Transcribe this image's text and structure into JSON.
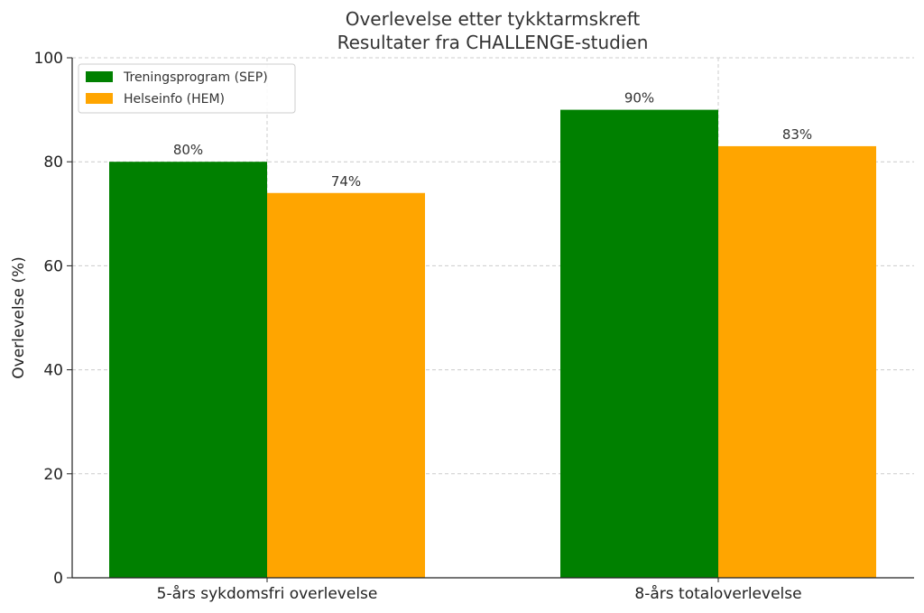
{
  "chart_data": {
    "type": "bar",
    "title": "Overlevelse etter tykktarmskreft",
    "subtitle": "Resultater fra CHALLENGE-studien",
    "ylabel": "Overlevelse (%)",
    "xlabel": "",
    "ylim": [
      0,
      100
    ],
    "yticks": [
      0,
      20,
      40,
      60,
      80,
      100
    ],
    "grid": true,
    "legend_position": "top-left",
    "categories": [
      "5-års sykdomsfri overlevelse",
      "8-års totaloverlevelse"
    ],
    "series": [
      {
        "name": "Treningsprogram (SEP)",
        "color": "#008000",
        "values": [
          80,
          90
        ],
        "labels": [
          "80%",
          "90%"
        ]
      },
      {
        "name": "Helseinfo (HEM)",
        "color": "#FFA500",
        "values": [
          74,
          83
        ],
        "labels": [
          "74%",
          "83%"
        ]
      }
    ]
  }
}
